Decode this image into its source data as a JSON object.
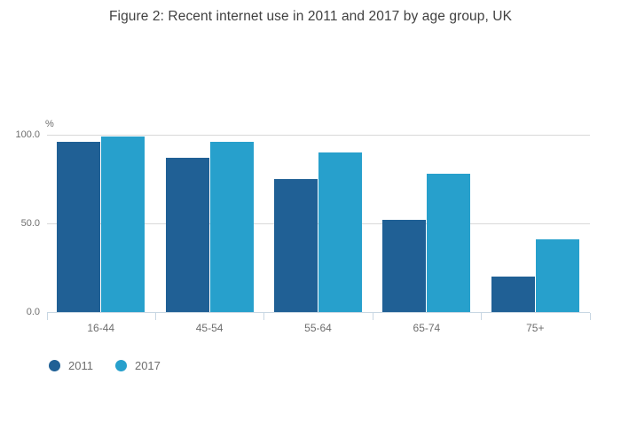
{
  "chart_data": {
    "type": "bar",
    "title": "Figure 2: Recent internet use in 2011 and 2017 by age group, UK",
    "categories": [
      "16-44",
      "45-54",
      "55-64",
      "65-74",
      "75+"
    ],
    "series": [
      {
        "name": "2011",
        "color": "#206095",
        "values": [
          96,
          87,
          75,
          52,
          20
        ]
      },
      {
        "name": "2017",
        "color": "#27a0cc",
        "values": [
          99,
          96,
          90,
          78,
          41
        ]
      }
    ],
    "xlabel": "",
    "ylabel": "%",
    "ylim": [
      0,
      100
    ],
    "yticks": [
      {
        "value": 0,
        "label": "0.0"
      },
      {
        "value": 50,
        "label": "50.0"
      },
      {
        "value": 100,
        "label": "100.0"
      }
    ],
    "grid": true,
    "legend_position": "bottom-left"
  },
  "colors": {
    "gridline": "#d9d9d9",
    "axis": "#c8d7e3",
    "tick_text": "#6e6e6e",
    "title_text": "#404040",
    "background": "#ffffff"
  }
}
